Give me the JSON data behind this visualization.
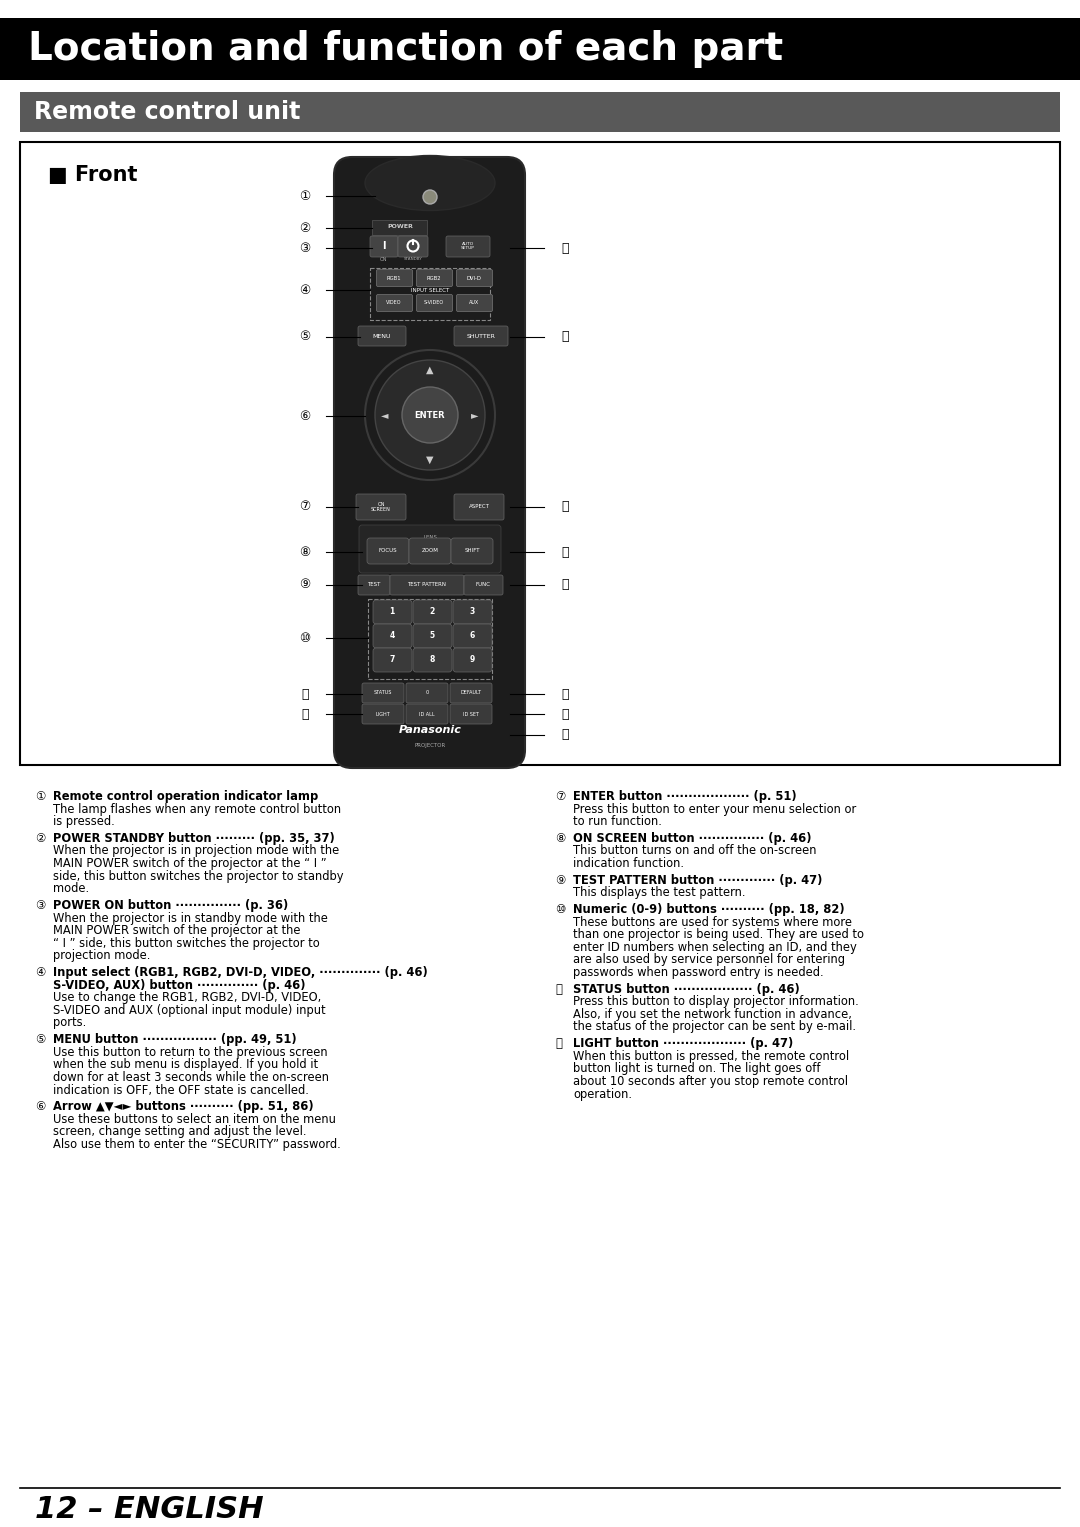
{
  "title": "Location and function of each part",
  "title_bg": "#000000",
  "title_color": "#ffffff",
  "section_title": "Remote control unit",
  "section_bg": "#595959",
  "section_color": "#ffffff",
  "front_label": "■ Front",
  "page_label": "12 – ENGLISH",
  "bg_color": "#ffffff",
  "box_border": "#000000",
  "remote_body": "#1a1a1a",
  "remote_edge": "#333333",
  "btn_color": "#3a3a3a",
  "btn_edge": "#555555",
  "btn_light": "#555555",
  "callout_nums_left": [
    "①",
    "②",
    "③",
    "④",
    "⑤",
    "⑥",
    "⑦",
    "⑧",
    "⑨",
    "⑩",
    "⑪",
    "⑫"
  ],
  "callout_nums_right": [
    "⑬",
    "⑭",
    "⑮",
    "⑯",
    "⑰",
    "⑱",
    "⑲",
    "⑳"
  ],
  "desc_left": [
    {
      "num": "①",
      "bold": "Remote control operation indicator lamp",
      "suffix": "",
      "body": "The lamp flashes when any remote control button\nis pressed."
    },
    {
      "num": "②",
      "bold": "POWER STANDBY button",
      "suffix": " ········· (pp. 35, 37)",
      "body": "When the projector is in projection mode with the\nMAIN POWER switch of the projector at the “ I ”\nside, this button switches the projector to standby\nmode."
    },
    {
      "num": "③",
      "bold": "POWER ON button",
      "suffix": " ··············· (p. 36)",
      "body": "When the projector is in standby mode with the\nMAIN POWER switch of the projector at the\n“ I ” side, this button switches the projector to\nprojection mode."
    },
    {
      "num": "④",
      "bold": "Input select (RGB1, RGB2, DVI-D, VIDEO,",
      "bold2": "S-VIDEO, AUX) button",
      "suffix": " ·············· (p. 46)",
      "body": "Use to change the RGB1, RGB2, DVI-D, VIDEO,\nS-VIDEO and AUX (optional input module) input\nports."
    },
    {
      "num": "⑤",
      "bold": "MENU button",
      "suffix": " ················· (pp. 49, 51)",
      "body": "Use this button to return to the previous screen\nwhen the sub menu is displayed. If you hold it\ndown for at least 3 seconds while the on-screen\nindication is OFF, the OFF state is cancelled."
    },
    {
      "num": "⑥",
      "bold": "Arrow ▲▼◄► buttons",
      "suffix": " ·········· (pp. 51, 86)",
      "body": "Use these buttons to select an item on the menu\nscreen, change setting and adjust the level.\nAlso use them to enter the “SECURITY” password."
    }
  ],
  "desc_right": [
    {
      "num": "⑦",
      "bold": "ENTER button",
      "suffix": " ··················· (p. 51)",
      "body": "Press this button to enter your menu selection or\nto run function."
    },
    {
      "num": "⑧",
      "bold": "ON SCREEN button",
      "suffix": " ··············· (p. 46)",
      "body": "This button turns on and off the on-screen\nindication function."
    },
    {
      "num": "⑨",
      "bold": "TEST PATTERN button",
      "suffix": " ············· (p. 47)",
      "body": "This displays the test pattern."
    },
    {
      "num": "⑩",
      "bold": "Numeric (0-9) buttons",
      "suffix": " ·········· (pp. 18, 82)",
      "body": "These buttons are used for systems where more\nthan one projector is being used. They are used to\nenter ID numbers when selecting an ID, and they\nare also used by service personnel for entering\npasswords when password entry is needed."
    },
    {
      "num": "⑪",
      "bold": "STATUS button",
      "suffix": " ·················· (p. 46)",
      "body": "Press this button to display projector information.\nAlso, if you set the network function in advance,\nthe status of the projector can be sent by e-mail."
    },
    {
      "num": "⑫",
      "bold": "LIGHT button",
      "suffix": " ··················· (p. 47)",
      "body": "When this button is pressed, the remote control\nbutton light is turned on. The light goes off\nabout 10 seconds after you stop remote control\noperation."
    }
  ]
}
